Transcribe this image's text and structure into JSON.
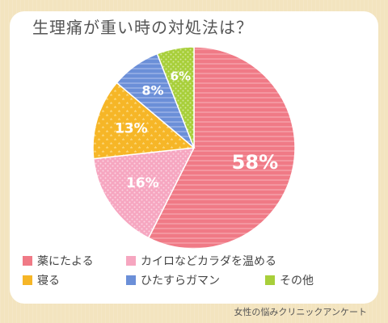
{
  "chart_data": {
    "type": "pie",
    "title": "生理痛が重い時の対処法は？",
    "start_angle_deg": 0,
    "direction": "clockwise",
    "legend_position": "bottom",
    "slices": [
      {
        "name": "薬にたよる",
        "value": 58,
        "label": "58%",
        "color": "#f07a86",
        "pattern": "stripes"
      },
      {
        "name": "カイロなどカラダを温める",
        "value": 16,
        "label": "16%",
        "color": "#f6a6c0",
        "pattern": "dots"
      },
      {
        "name": "寝る",
        "value": 13,
        "label": "13%",
        "color": "#f6b627",
        "pattern": "stars"
      },
      {
        "name": "ひたすらガマン",
        "value": 8,
        "label": "8%",
        "color": "#6b8fd8",
        "pattern": "stripes"
      },
      {
        "name": "その他",
        "value": 6,
        "label": "6%",
        "color": "#a8cf3a",
        "pattern": "dots"
      }
    ]
  },
  "source": "女性の悩みクリニックアンケート"
}
